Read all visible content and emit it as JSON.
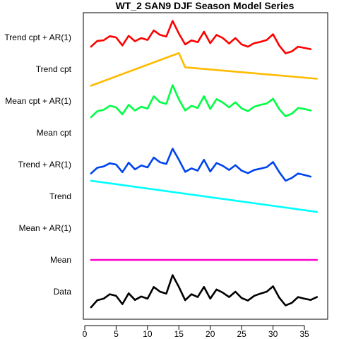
{
  "chart_data": {
    "type": "line",
    "title": "WT_2 SAN9 DJF Season Model Series",
    "xlabel": "",
    "ylabel": "",
    "xlim": [
      0,
      38
    ],
    "x_ticks": [
      0,
      5,
      10,
      15,
      20,
      25,
      30,
      35
    ],
    "grid": false,
    "legend": "none",
    "row_labels": [
      "Data",
      "Mean",
      "Mean + AR(1)",
      "Trend",
      "Trend + AR(1)",
      "Mean cpt",
      "Mean cpt + AR(1)",
      "Trend cpt",
      "Trend cpt + AR(1)"
    ],
    "note_values": "values are vertical offsets in row units (0 = bottom row Data, 8 = top row)",
    "series": [
      {
        "row": "Data",
        "color": "#000000",
        "x": [
          1,
          2,
          3,
          4,
          5,
          6,
          7,
          8,
          9,
          10,
          11,
          12,
          13,
          14,
          15,
          16,
          17,
          18,
          19,
          20,
          21,
          22,
          23,
          24,
          25,
          26,
          27,
          28,
          29,
          30,
          31,
          32,
          33,
          34,
          35,
          36,
          37
        ],
        "y": [
          -0.49,
          -0.27,
          -0.22,
          -0.08,
          -0.13,
          -0.39,
          -0.05,
          -0.26,
          -0.15,
          -0.22,
          0.15,
          0.0,
          -0.06,
          0.52,
          0.15,
          -0.27,
          -0.08,
          -0.17,
          0.15,
          -0.22,
          0.07,
          -0.03,
          -0.17,
          0.0,
          -0.2,
          -0.28,
          -0.13,
          -0.06,
          0.0,
          0.17,
          -0.19,
          -0.43,
          -0.35,
          -0.17,
          -0.22,
          -0.26,
          -0.17
        ]
      },
      {
        "row": "Mean",
        "color": "#ff00cc",
        "x": [
          1,
          37
        ],
        "y": [
          1.0,
          1.0
        ]
      },
      {
        "row": "Trend",
        "color": "#00ffff",
        "x": [
          1,
          37
        ],
        "y": [
          3.49,
          2.51
        ]
      },
      {
        "row": "Trend + AR(1)",
        "color": "#0044ee",
        "x": [
          1,
          2,
          3,
          4,
          5,
          6,
          7,
          8,
          9,
          10,
          11,
          12,
          13,
          14,
          15,
          16,
          17,
          18,
          19,
          20,
          21,
          22,
          23,
          24,
          25,
          26,
          27,
          28,
          29,
          30,
          31,
          32,
          33,
          34,
          35,
          36
        ],
        "y": [
          3.72,
          3.9,
          3.94,
          4.04,
          4.0,
          3.76,
          4.06,
          3.85,
          3.97,
          3.91,
          4.22,
          4.07,
          4.02,
          4.5,
          4.15,
          3.77,
          3.88,
          3.81,
          4.15,
          3.78,
          4.05,
          3.96,
          3.83,
          3.98,
          3.81,
          3.73,
          3.83,
          3.87,
          3.92,
          4.08,
          3.76,
          3.49,
          3.58,
          3.72,
          3.67,
          3.62
        ]
      },
      {
        "row": "Mean cpt + AR(1)",
        "color": "#00ff44",
        "x": [
          1,
          2,
          3,
          4,
          5,
          6,
          7,
          8,
          9,
          10,
          11,
          12,
          13,
          14,
          15,
          16,
          17,
          18,
          19,
          20,
          21,
          22,
          23,
          24,
          25,
          26,
          27,
          28,
          29,
          30,
          31,
          32,
          33,
          34,
          35,
          36
        ],
        "y": [
          5.49,
          5.68,
          5.72,
          5.85,
          5.8,
          5.58,
          5.88,
          5.7,
          5.82,
          5.76,
          6.15,
          5.96,
          5.91,
          6.5,
          6.05,
          5.7,
          5.85,
          5.78,
          6.15,
          5.75,
          6.06,
          5.95,
          5.8,
          5.96,
          5.77,
          5.68,
          5.82,
          5.88,
          5.92,
          6.07,
          5.74,
          5.52,
          5.6,
          5.78,
          5.75,
          5.7
        ]
      },
      {
        "row": "Trend cpt",
        "color": "#ffbb00",
        "x": [
          1,
          15,
          16,
          37
        ],
        "y": [
          6.48,
          7.51,
          7.06,
          6.7
        ]
      },
      {
        "row": "Trend cpt + AR(1)",
        "color": "#ff0000",
        "x": [
          1,
          2,
          3,
          4,
          5,
          6,
          7,
          8,
          9,
          10,
          11,
          12,
          13,
          14,
          15,
          16,
          17,
          18,
          19,
          20,
          21,
          22,
          23,
          24,
          25,
          26,
          27,
          28,
          29,
          30,
          31,
          32,
          33,
          34,
          35,
          36
        ],
        "y": [
          7.71,
          7.89,
          7.91,
          8.04,
          8.0,
          7.75,
          8.05,
          7.88,
          7.98,
          7.92,
          8.22,
          8.08,
          8.03,
          8.52,
          8.12,
          7.78,
          7.91,
          7.85,
          8.18,
          7.82,
          8.08,
          7.98,
          7.81,
          7.98,
          7.78,
          7.71,
          7.82,
          7.86,
          7.92,
          8.1,
          7.74,
          7.5,
          7.56,
          7.71,
          7.67,
          7.63
        ]
      }
    ]
  }
}
